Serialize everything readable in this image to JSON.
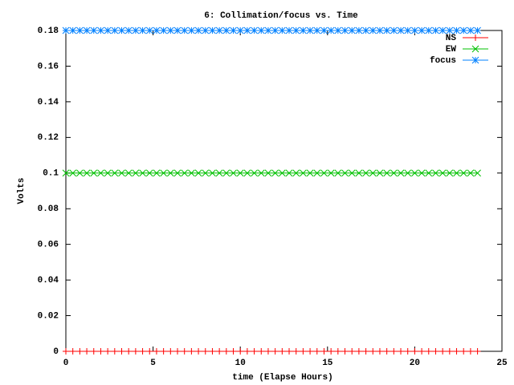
{
  "chart_data": {
    "type": "line",
    "title": "6: Collimation/focus vs. Time",
    "xlabel": "time (Elapse Hours)",
    "ylabel": "Volts",
    "x": [
      0,
      0.4,
      0.8,
      1.2,
      1.6,
      2,
      2.4,
      2.8,
      3.2,
      3.6,
      4,
      4.4,
      4.8,
      5.2,
      5.6,
      6,
      6.4,
      6.8,
      7.2,
      7.6,
      8,
      8.4,
      8.8,
      9.2,
      9.6,
      10,
      10.4,
      10.8,
      11.2,
      11.6,
      12,
      12.4,
      12.8,
      13.2,
      13.6,
      14,
      14.4,
      14.8,
      15.2,
      15.6,
      16,
      16.4,
      16.8,
      17.2,
      17.6,
      18,
      18.4,
      18.8,
      19.2,
      19.6,
      20,
      20.4,
      20.8,
      21.2,
      21.6,
      22,
      22.4,
      22.8,
      23.2,
      23.6
    ],
    "series": [
      {
        "name": "NS",
        "color": "#ff0000",
        "marker": "plus",
        "values": [
          0,
          0,
          0,
          0,
          0,
          0,
          0,
          0,
          0,
          0,
          0,
          0,
          0,
          0,
          0,
          0,
          0,
          0,
          0,
          0,
          0,
          0,
          0,
          0,
          0,
          0,
          0,
          0,
          0,
          0,
          0,
          0,
          0,
          0,
          0,
          0,
          0,
          0,
          0,
          0,
          0,
          0,
          0,
          0,
          0,
          0,
          0,
          0,
          0,
          0,
          0,
          0,
          0,
          0,
          0,
          0,
          0,
          0,
          0,
          0
        ]
      },
      {
        "name": "EW",
        "color": "#00c000",
        "marker": "cross",
        "values": [
          0.1,
          0.1,
          0.1,
          0.1,
          0.1,
          0.1,
          0.1,
          0.1,
          0.1,
          0.1,
          0.1,
          0.1,
          0.1,
          0.1,
          0.1,
          0.1,
          0.1,
          0.1,
          0.1,
          0.1,
          0.1,
          0.1,
          0.1,
          0.1,
          0.1,
          0.1,
          0.1,
          0.1,
          0.1,
          0.1,
          0.1,
          0.1,
          0.1,
          0.1,
          0.1,
          0.1,
          0.1,
          0.1,
          0.1,
          0.1,
          0.1,
          0.1,
          0.1,
          0.1,
          0.1,
          0.1,
          0.1,
          0.1,
          0.1,
          0.1,
          0.1,
          0.1,
          0.1,
          0.1,
          0.1,
          0.1,
          0.1,
          0.1,
          0.1,
          0.1
        ]
      },
      {
        "name": "focus",
        "color": "#0080ff",
        "marker": "star",
        "values": [
          0.18,
          0.18,
          0.18,
          0.18,
          0.18,
          0.18,
          0.18,
          0.18,
          0.18,
          0.18,
          0.18,
          0.18,
          0.18,
          0.18,
          0.18,
          0.18,
          0.18,
          0.18,
          0.18,
          0.18,
          0.18,
          0.18,
          0.18,
          0.18,
          0.18,
          0.18,
          0.18,
          0.18,
          0.18,
          0.18,
          0.18,
          0.18,
          0.18,
          0.18,
          0.18,
          0.18,
          0.18,
          0.18,
          0.18,
          0.18,
          0.18,
          0.18,
          0.18,
          0.18,
          0.18,
          0.18,
          0.18,
          0.18,
          0.18,
          0.18,
          0.18,
          0.18,
          0.18,
          0.18,
          0.18,
          0.18,
          0.18,
          0.18,
          0.18,
          0.18
        ]
      }
    ],
    "xlim": [
      0,
      25
    ],
    "xticks": [
      0,
      5,
      10,
      15,
      20,
      25
    ],
    "ylim": [
      0,
      0.18
    ],
    "yticks": [
      0,
      0.02,
      0.04,
      0.06,
      0.08,
      0.1,
      0.12,
      0.14,
      0.16,
      0.18
    ],
    "grid": false,
    "legend": "top-right"
  }
}
